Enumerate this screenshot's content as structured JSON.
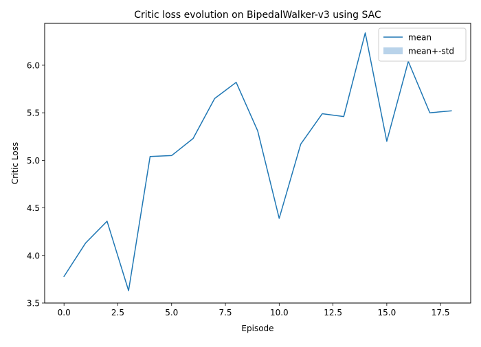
{
  "chart_data": {
    "type": "line",
    "title": "Critic loss evolution on BipedalWalker-v3 using SAC",
    "xlabel": "Episode",
    "ylabel": "Critic Loss",
    "xlim": [
      -0.9,
      18.9
    ],
    "ylim": [
      3.5,
      6.44
    ],
    "xticks": [
      0.0,
      2.5,
      5.0,
      7.5,
      10.0,
      12.5,
      15.0,
      17.5
    ],
    "xtick_labels": [
      "0.0",
      "2.5",
      "5.0",
      "7.5",
      "10.0",
      "12.5",
      "15.0",
      "17.5"
    ],
    "yticks": [
      3.5,
      4.0,
      4.5,
      5.0,
      5.5,
      6.0
    ],
    "ytick_labels": [
      "3.5",
      "4.0",
      "4.5",
      "5.0",
      "5.5",
      "6.0"
    ],
    "grid": false,
    "legend_position": "top-right",
    "series": [
      {
        "name": "mean",
        "color": "#1f77b4",
        "x": [
          0,
          1,
          2,
          3,
          4,
          5,
          6,
          7,
          8,
          9,
          10,
          11,
          12,
          13,
          14,
          15,
          16,
          17,
          18
        ],
        "values": [
          3.78,
          4.13,
          4.36,
          3.63,
          5.04,
          5.05,
          5.23,
          5.65,
          5.82,
          5.31,
          4.39,
          5.17,
          5.49,
          5.46,
          6.34,
          5.2,
          6.04,
          5.5,
          5.52
        ]
      }
    ],
    "legend": [
      {
        "label": "mean",
        "kind": "line",
        "color": "#1f77b4"
      },
      {
        "label": "mean+-std",
        "kind": "patch",
        "color": "#b9d3ea"
      }
    ]
  }
}
